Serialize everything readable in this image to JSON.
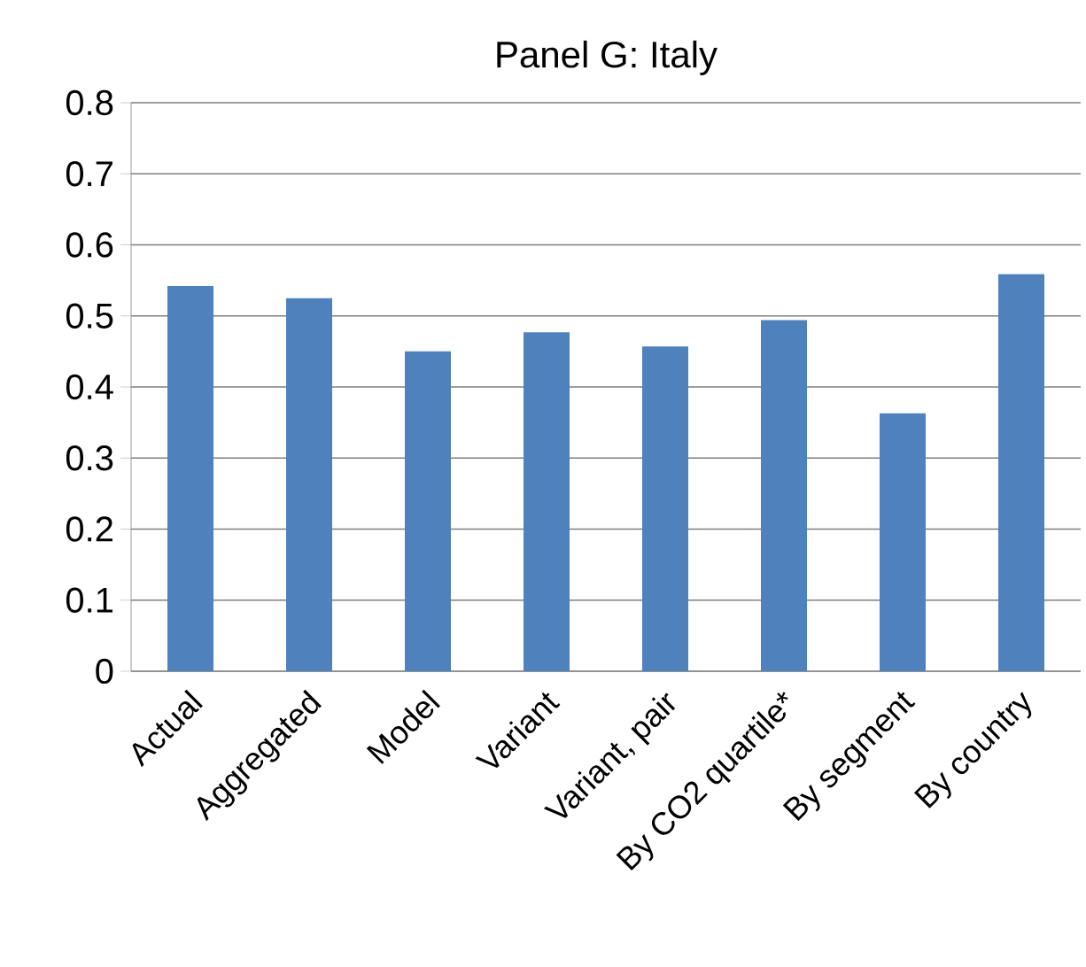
{
  "chart_data": {
    "type": "bar",
    "title": "Panel G: Italy",
    "categories": [
      "Actual",
      "Aggregated",
      "Model",
      "Variant",
      "Variant, pair",
      "By CO2 quartile*",
      "By segment",
      "By country"
    ],
    "values": [
      0.542,
      0.525,
      0.45,
      0.477,
      0.457,
      0.494,
      0.363,
      0.559
    ],
    "color": "#4f81bd",
    "ylim": [
      0,
      0.8
    ],
    "yticks": [
      0,
      0.1,
      0.2,
      0.3,
      0.4,
      0.5,
      0.6,
      0.7,
      0.8
    ],
    "grid": "y"
  }
}
